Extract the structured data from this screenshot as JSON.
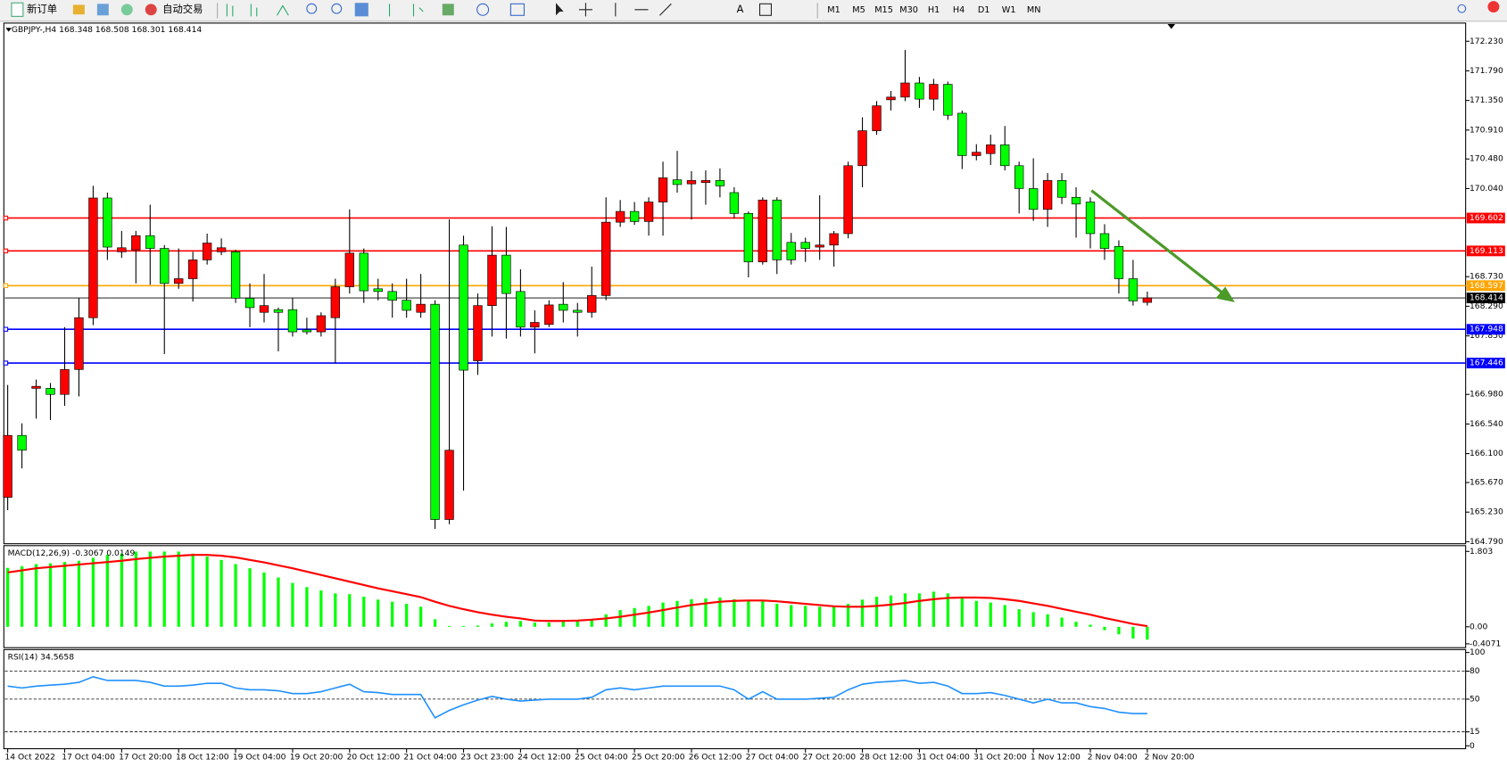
{
  "toolbar": {
    "new_order": "新订单",
    "auto_trading": "自动交易",
    "timeframes": [
      "M1",
      "M5",
      "M15",
      "M30",
      "H1",
      "H4",
      "D1",
      "W1",
      "MN"
    ]
  },
  "chart_data": [
    {
      "type": "candlestick",
      "title": "GBPJPY-,H4  168.348 168.508 168.301 168.414",
      "x": [
        "14 Oct 2022",
        null,
        null,
        null,
        "17 Oct 04:00",
        null,
        null,
        null,
        "17 Oct 20:00",
        null,
        null,
        null,
        "18 Oct 12:00",
        null,
        null,
        null,
        "19 Oct 04:00",
        null,
        null,
        null,
        "19 Oct 20:00",
        null,
        null,
        null,
        "20 Oct 12:00",
        null,
        null,
        null,
        "21 Oct 04:00",
        null,
        null,
        null,
        "23 Oct 23:00",
        null,
        null,
        null,
        "24 Oct 12:00",
        null,
        null,
        null,
        "25 Oct 04:00",
        null,
        null,
        null,
        "25 Oct 20:00",
        null,
        null,
        null,
        "26 Oct 12:00",
        null,
        null,
        null,
        "27 Oct 04:00",
        null,
        null,
        null,
        "27 Oct 20:00",
        null,
        null,
        null,
        "28 Oct 12:00",
        null,
        null,
        null,
        "31 Oct 04:00",
        null,
        null,
        null,
        "31 Oct 20:00",
        null,
        null,
        null,
        "1 Nov 12:00",
        null,
        null,
        null,
        "2 Nov 04:00",
        null,
        null,
        null,
        "2 Nov 20:00"
      ],
      "open": [
        165.45,
        166.37,
        167.07,
        167.07,
        166.98,
        167.35,
        168.12,
        169.9,
        169.1,
        169.13,
        169.34,
        169.15,
        168.63,
        168.7,
        168.98,
        169.1,
        169.1,
        168.41,
        168.2,
        168.24,
        168.24,
        167.94,
        167.91,
        168.12,
        168.58,
        169.08,
        168.55,
        168.51,
        168.38,
        168.2,
        168.32,
        165.12,
        169.2,
        167.48,
        168.3,
        169.05,
        168.51,
        167.98,
        168.02,
        168.32,
        168.23,
        168.2,
        168.45,
        169.54,
        169.7,
        169.55,
        169.84,
        170.17,
        170.11,
        170.13,
        170.16,
        169.98,
        169.67,
        168.95,
        169.87,
        169.24,
        169.24,
        169.17,
        169.2,
        169.37,
        170.38,
        170.9,
        171.36,
        171.4,
        171.61,
        171.37,
        171.59,
        171.16,
        170.53,
        170.56,
        170.69,
        170.38,
        170.04,
        169.73,
        170.16,
        169.91,
        169.84,
        169.37,
        169.18,
        168.7,
        168.348
      ],
      "high": [
        167.12,
        166.55,
        167.2,
        167.15,
        167.98,
        168.41,
        170.08,
        169.98,
        169.41,
        169.41,
        169.8,
        169.2,
        169.15,
        169.1,
        169.37,
        169.3,
        169.13,
        168.63,
        168.77,
        168.27,
        168.41,
        168.12,
        168.2,
        168.7,
        169.73,
        169.15,
        168.7,
        168.63,
        168.7,
        168.77,
        168.38,
        169.58,
        169.34,
        168.48,
        169.48,
        169.47,
        168.84,
        168.23,
        168.38,
        168.65,
        168.34,
        168.88,
        169.91,
        169.87,
        169.84,
        169.91,
        170.44,
        170.6,
        170.3,
        170.31,
        170.34,
        170.06,
        169.7,
        169.91,
        169.91,
        169.38,
        169.31,
        169.94,
        169.41,
        170.44,
        171.1,
        171.34,
        171.49,
        172.1,
        171.7,
        171.67,
        171.63,
        171.2,
        170.7,
        170.84,
        170.97,
        170.44,
        170.49,
        170.27,
        170.27,
        170.06,
        169.91,
        169.51,
        169.27,
        168.98,
        168.508
      ],
      "low": [
        165.26,
        165.88,
        166.62,
        166.6,
        166.81,
        166.95,
        168.01,
        168.98,
        169.01,
        168.63,
        168.61,
        167.58,
        168.55,
        168.36,
        168.91,
        169.05,
        168.34,
        167.98,
        168.05,
        167.62,
        167.84,
        167.87,
        167.84,
        167.44,
        168.48,
        168.34,
        168.38,
        168.12,
        168.12,
        168.12,
        164.98,
        165.05,
        165.55,
        167.27,
        167.84,
        167.81,
        167.84,
        167.59,
        167.98,
        168.05,
        167.84,
        168.12,
        168.38,
        169.47,
        169.5,
        169.34,
        169.34,
        169.98,
        169.58,
        169.8,
        169.91,
        169.6,
        168.72,
        168.91,
        168.77,
        168.91,
        168.95,
        168.98,
        168.88,
        169.3,
        170.06,
        170.84,
        171.2,
        171.34,
        171.24,
        171.2,
        171.06,
        170.33,
        170.46,
        170.39,
        170.31,
        169.67,
        169.56,
        169.47,
        169.81,
        169.31,
        169.15,
        168.98,
        168.48,
        168.3,
        168.301
      ],
      "close": [
        166.37,
        166.15,
        167.1,
        166.98,
        167.35,
        168.12,
        169.9,
        169.17,
        169.16,
        169.34,
        169.15,
        168.63,
        168.7,
        168.98,
        169.23,
        169.16,
        168.41,
        168.27,
        168.3,
        168.2,
        167.91,
        167.91,
        168.15,
        168.58,
        169.08,
        168.52,
        168.51,
        168.38,
        168.23,
        168.32,
        165.12,
        166.15,
        167.34,
        168.3,
        169.05,
        168.48,
        167.98,
        168.05,
        168.31,
        168.23,
        168.2,
        168.45,
        169.54,
        169.7,
        169.55,
        169.84,
        170.2,
        170.1,
        170.16,
        170.16,
        170.08,
        169.67,
        168.95,
        169.87,
        168.98,
        168.98,
        169.15,
        169.2,
        169.37,
        170.38,
        170.9,
        171.27,
        171.4,
        171.61,
        171.37,
        171.59,
        171.13,
        170.53,
        170.58,
        170.69,
        170.38,
        170.04,
        169.73,
        170.16,
        169.91,
        169.81,
        169.37,
        169.15,
        168.7,
        168.37,
        168.414
      ],
      "up_color": "#ff0000",
      "down_color": "#00ff00",
      "ylim": [
        164.76,
        172.5
      ],
      "yticks": [
        {
          "value": 172.23,
          "label": "172.230"
        },
        {
          "value": 171.79,
          "label": "171.790"
        },
        {
          "value": 171.35,
          "label": "171.350"
        },
        {
          "value": 170.91,
          "label": "170.910"
        },
        {
          "value": 170.48,
          "label": "170.480"
        },
        {
          "value": 170.04,
          "label": "170.040"
        },
        {
          "value": 168.73,
          "label": "168.730"
        },
        {
          "value": 168.29,
          "label": "168.290"
        },
        {
          "value": 167.85,
          "label": "167.850"
        },
        {
          "value": 166.98,
          "label": "166.980"
        },
        {
          "value": 166.54,
          "label": "166.540"
        },
        {
          "value": 166.1,
          "label": "166.100"
        },
        {
          "value": 165.67,
          "label": "165.670"
        },
        {
          "value": 165.23,
          "label": "165.230"
        },
        {
          "value": 164.79,
          "label": "164.790"
        }
      ],
      "levels": [
        {
          "value": 169.602,
          "label": "169.602",
          "color": "#ff0000"
        },
        {
          "value": 169.113,
          "label": "169.113",
          "color": "#ff0000"
        },
        {
          "value": 168.597,
          "label": "168.597",
          "color": "#ffa500"
        },
        {
          "value": 167.948,
          "label": "167.948",
          "color": "#0000ff"
        },
        {
          "value": 167.446,
          "label": "167.446",
          "color": "#0000ff"
        }
      ],
      "price_line": {
        "value": 168.414,
        "label": "168.414"
      }
    },
    {
      "type": "combo",
      "title": "MACD(12,26,9) -0.3067 0.0149",
      "series": [
        {
          "style": "bar",
          "color": "#00ff00",
          "values": [
            1.41,
            1.45,
            1.5,
            1.52,
            1.55,
            1.58,
            1.65,
            1.72,
            1.75,
            1.8,
            1.8,
            1.8,
            1.8,
            1.75,
            1.68,
            1.6,
            1.5,
            1.4,
            1.3,
            1.18,
            1.05,
            0.95,
            0.87,
            0.8,
            0.78,
            0.72,
            0.65,
            0.6,
            0.55,
            0.48,
            0.18,
            0.02,
            0.02,
            0.03,
            0.08,
            0.12,
            0.14,
            0.1,
            0.1,
            0.12,
            0.14,
            0.18,
            0.3,
            0.4,
            0.45,
            0.5,
            0.58,
            0.62,
            0.66,
            0.68,
            0.7,
            0.66,
            0.62,
            0.62,
            0.55,
            0.52,
            0.5,
            0.48,
            0.48,
            0.55,
            0.65,
            0.72,
            0.75,
            0.8,
            0.8,
            0.84,
            0.8,
            0.7,
            0.62,
            0.58,
            0.52,
            0.42,
            0.35,
            0.3,
            0.22,
            0.12,
            0.05,
            -0.08,
            -0.18,
            -0.28,
            -0.3067
          ]
        },
        {
          "style": "line",
          "color": "#ff0000",
          "values": [
            1.3,
            1.35,
            1.4,
            1.43,
            1.46,
            1.49,
            1.52,
            1.55,
            1.58,
            1.62,
            1.65,
            1.68,
            1.7,
            1.72,
            1.72,
            1.7,
            1.66,
            1.6,
            1.54,
            1.47,
            1.4,
            1.32,
            1.24,
            1.16,
            1.08,
            1.0,
            0.92,
            0.85,
            0.78,
            0.71,
            0.6,
            0.5,
            0.42,
            0.35,
            0.29,
            0.24,
            0.2,
            0.15,
            0.14,
            0.14,
            0.15,
            0.17,
            0.2,
            0.24,
            0.29,
            0.34,
            0.4,
            0.46,
            0.52,
            0.56,
            0.6,
            0.62,
            0.63,
            0.63,
            0.61,
            0.58,
            0.55,
            0.52,
            0.49,
            0.48,
            0.48,
            0.5,
            0.53,
            0.57,
            0.62,
            0.66,
            0.69,
            0.7,
            0.7,
            0.69,
            0.66,
            0.62,
            0.56,
            0.5,
            0.43,
            0.36,
            0.29,
            0.21,
            0.14,
            0.07,
            0.0149
          ]
        }
      ],
      "ylim": [
        -0.4071,
        1.803
      ],
      "yticks": [
        1.803,
        {
          "value": 0,
          "label": "0.00"
        },
        -0.4071
      ]
    },
    {
      "type": "line",
      "title": "RSI(14) 34.5658",
      "series": [
        {
          "color": "#1e90ff",
          "values": [
            64,
            62,
            64,
            65,
            66,
            68,
            74,
            70,
            70,
            70,
            68,
            64,
            64,
            65,
            67,
            67,
            62,
            60,
            60,
            59,
            56,
            56,
            58,
            62,
            66,
            58,
            57,
            55,
            55,
            55,
            30,
            38,
            44,
            49,
            53,
            50,
            48,
            49,
            50,
            50,
            50,
            52,
            60,
            62,
            60,
            62,
            64,
            64,
            64,
            64,
            64,
            60,
            50,
            58,
            50,
            50,
            50,
            51,
            52,
            60,
            66,
            68,
            69,
            70,
            67,
            68,
            64,
            56,
            56,
            57,
            54,
            50,
            46,
            50,
            46,
            46,
            42,
            40,
            36,
            34.6,
            34.5658
          ]
        }
      ],
      "ylim": [
        0,
        100
      ],
      "yticks": [
        100,
        80,
        50,
        15,
        0
      ],
      "levels": [
        80,
        50,
        15
      ]
    }
  ]
}
